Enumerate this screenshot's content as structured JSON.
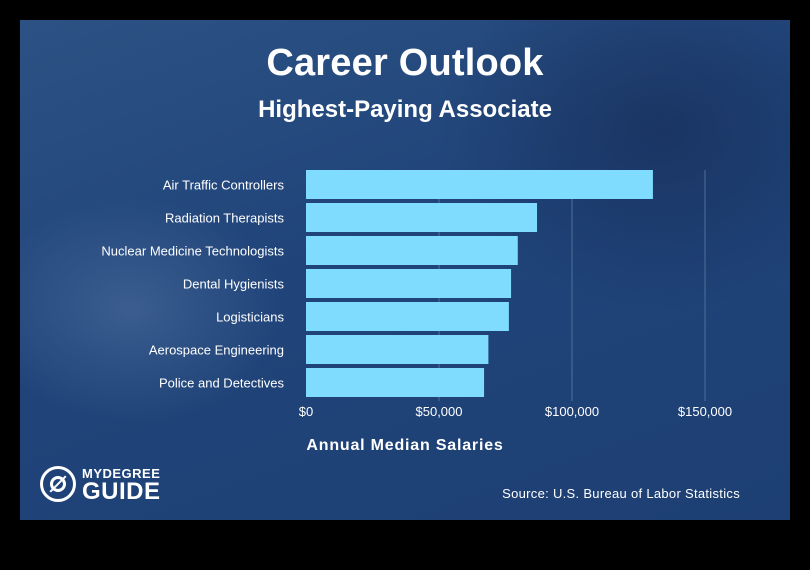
{
  "header": {
    "title": "Career Outlook",
    "subtitle": "Highest-Paying Associate"
  },
  "logo": {
    "top_text": "MYDEGREE",
    "bottom_text": "GUIDE"
  },
  "source": "Source: U.S. Bureau of Labor Statistics",
  "colors": {
    "background": "#214578",
    "bar": "#7fdcff",
    "text": "#ffffff",
    "grid": "#4f6f9a"
  },
  "chart_data": {
    "type": "bar",
    "orientation": "horizontal",
    "title": "Career Outlook",
    "subtitle": "Highest-Paying Associate",
    "categories": [
      "Air Traffic Controllers",
      "Radiation Therapists",
      "Nuclear Medicine Technologists",
      "Dental Hygienists",
      "Logisticians",
      "Aerospace Engineering",
      "Police and Detectives"
    ],
    "values": [
      130420,
      86850,
      79610,
      77090,
      76270,
      68570,
      66940
    ],
    "xlabel": "Annual Median Salaries",
    "ylabel": "",
    "xlim": [
      0,
      150000
    ],
    "xticks": [
      0,
      50000,
      100000,
      150000
    ],
    "xtick_labels": [
      "$0",
      "$50,000",
      "$100,000",
      "$150,000"
    ],
    "grid": true,
    "legend": "none"
  }
}
